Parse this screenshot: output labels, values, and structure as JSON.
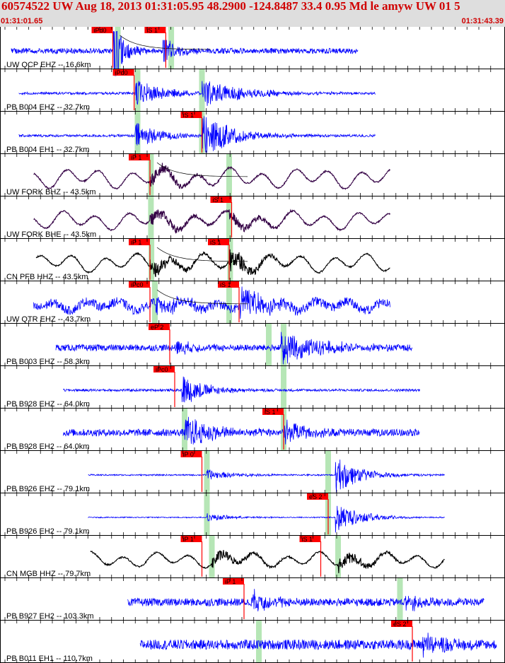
{
  "header": {
    "title": "60574522 UW Aug 18, 2013 01:31:05.95   48.2900 -124.8487 33.4 0.95 Md le amyw UW 01   5",
    "start_time": "01:31:01.65",
    "end_time": "01:31:43.39"
  },
  "colors": {
    "header_bg": "#dedede",
    "title": "#d00000",
    "pick_label_bg": "#ff0000",
    "pick_window": "#b6e6b6",
    "trace_blue": "#0000ff",
    "trace_black": "#000000",
    "trace_purple": "#330044"
  },
  "traces": [
    {
      "label": "UW QCP EHZ -- 16.6km",
      "color": "#0000ff",
      "kind": "spike",
      "t0": 0.02,
      "t1": 0.72,
      "ampl": 0.15,
      "events": [
        {
          "t": 0.23,
          "a": 1.6,
          "d": 0.02
        },
        {
          "t": 0.33,
          "a": 0.6,
          "d": 0.03
        }
      ],
      "windows": [
        0.235,
        0.343
      ],
      "picks": [
        {
          "t": 0.225,
          "label": "iPd0"
        },
        {
          "t": 0.332,
          "label": "iS 1"
        }
      ],
      "fit_curve": true
    },
    {
      "label": "PB B004 EHZ -- 32.7km",
      "color": "#0000ff",
      "kind": "noise",
      "t0": 0.035,
      "t1": 0.755,
      "ampl": 0.07,
      "events": [
        {
          "t": 0.27,
          "a": 0.8,
          "d": 0.05
        },
        {
          "t": 0.405,
          "a": 0.65,
          "d": 0.09
        }
      ],
      "windows": [
        0.275,
        0.405
      ],
      "picks": [
        {
          "t": 0.268,
          "label": "iPd0"
        }
      ]
    },
    {
      "label": "PB B004 EH1 -- 32.7km",
      "color": "#0000ff",
      "kind": "noise",
      "t0": 0.035,
      "t1": 0.755,
      "ampl": 0.07,
      "events": [
        {
          "t": 0.27,
          "a": 0.7,
          "d": 0.05
        },
        {
          "t": 0.405,
          "a": 1.2,
          "d": 0.06
        }
      ],
      "windows": [
        0.275,
        0.405
      ],
      "picks": [
        {
          "t": 0.405,
          "label": "iS 1"
        }
      ]
    },
    {
      "label": "UW FORK BHZ -- 43.5km",
      "color": "#330044",
      "kind": "wave",
      "t0": 0.065,
      "t1": 0.785,
      "ampl": 0.6,
      "events": [
        {
          "t": 0.3,
          "a": 0.4,
          "d": 0.06
        }
      ],
      "windows": [
        0.302,
        0.46
      ],
      "picks": [
        {
          "t": 0.3,
          "label": "iP 1"
        }
      ],
      "fit_curve": true
    },
    {
      "label": "UW FORK BHE -- 43.5km",
      "color": "#330044",
      "kind": "wave",
      "t0": 0.065,
      "t1": 0.785,
      "ampl": 0.55,
      "events": [
        {
          "t": 0.3,
          "a": 0.4,
          "d": 0.06
        },
        {
          "t": 0.46,
          "a": 0.35,
          "d": 0.06
        }
      ],
      "windows": [
        0.302,
        0.46
      ],
      "picks": [
        {
          "t": 0.465,
          "label": "iS 1"
        }
      ]
    },
    {
      "label": "CN PFB HHZ -- 43.5km",
      "color": "#000000",
      "kind": "wave",
      "t0": 0.07,
      "t1": 0.785,
      "ampl": 0.55,
      "events": [
        {
          "t": 0.3,
          "a": 0.45,
          "d": 0.06
        },
        {
          "t": 0.46,
          "a": 0.6,
          "d": 0.05
        }
      ],
      "windows": [
        0.303,
        0.462
      ],
      "picks": [
        {
          "t": 0.3,
          "label": "iP 1"
        },
        {
          "t": 0.46,
          "label": "iS 1"
        }
      ],
      "fit_curve": true
    },
    {
      "label": "UW QTR EHZ -- 43.7km",
      "color": "#0000ff",
      "kind": "noisewave",
      "t0": 0.065,
      "t1": 0.785,
      "ampl": 0.3,
      "events": [
        {
          "t": 0.31,
          "a": 0.5,
          "d": 0.05
        },
        {
          "t": 0.48,
          "a": 0.9,
          "d": 0.05
        }
      ],
      "windows": [
        0.31,
        0.46
      ],
      "picks": [
        {
          "t": 0.3,
          "label": "iPc0"
        },
        {
          "t": 0.48,
          "label": "iS 1"
        }
      ],
      "fit_curve": true
    },
    {
      "label": "PB B003 EHZ -- 58.3km",
      "color": "#0000ff",
      "kind": "noise",
      "t0": 0.11,
      "t1": 0.83,
      "ampl": 0.18,
      "events": [
        {
          "t": 0.35,
          "a": 0.35,
          "d": 0.04
        },
        {
          "t": 0.565,
          "a": 0.85,
          "d": 0.08
        }
      ],
      "windows": [
        0.54,
        0.57
      ],
      "picks": [
        {
          "t": 0.34,
          "label": "eP 2"
        }
      ]
    },
    {
      "label": "PB B928 EHZ -- 64.0km",
      "color": "#0000ff",
      "kind": "noise",
      "t0": 0.125,
      "t1": 0.845,
      "ampl": 0.07,
      "events": [
        {
          "t": 0.365,
          "a": 0.8,
          "d": 0.05
        }
      ],
      "windows": [
        0.57
      ],
      "picks": [
        {
          "t": 0.35,
          "label": "iPc0"
        }
      ]
    },
    {
      "label": "PB B928 EH2 -- 64.0km",
      "color": "#0000ff",
      "kind": "noise",
      "t0": 0.125,
      "t1": 0.845,
      "ampl": 0.2,
      "events": [
        {
          "t": 0.37,
          "a": 0.9,
          "d": 0.05
        },
        {
          "t": 0.57,
          "a": 0.6,
          "d": 0.05
        }
      ],
      "windows": [
        0.37,
        0.57
      ],
      "picks": [
        {
          "t": 0.57,
          "label": "iS 1"
        }
      ]
    },
    {
      "label": "PB B926 EHZ -- 79.1km",
      "color": "#0000ff",
      "kind": "noise",
      "t0": 0.175,
      "t1": 0.895,
      "ampl": 0.04,
      "events": [
        {
          "t": 0.415,
          "a": 0.3,
          "d": 0.05
        },
        {
          "t": 0.675,
          "a": 0.95,
          "d": 0.05
        }
      ],
      "windows": [
        0.415,
        0.66
      ],
      "picks": [
        {
          "t": 0.405,
          "label": "iP 0"
        }
      ]
    },
    {
      "label": "PB B926 EH2 -- 79.1km",
      "color": "#0000ff",
      "kind": "noise",
      "t0": 0.175,
      "t1": 0.895,
      "ampl": 0.03,
      "events": [
        {
          "t": 0.415,
          "a": 0.2,
          "d": 0.05
        },
        {
          "t": 0.675,
          "a": 0.8,
          "d": 0.05
        }
      ],
      "windows": [
        0.415,
        0.66
      ],
      "picks": [
        {
          "t": 0.66,
          "label": "eS 2"
        }
      ]
    },
    {
      "label": "CN MGB HHZ -- 79.7km",
      "color": "#000000",
      "kind": "wave",
      "t0": 0.18,
      "t1": 0.895,
      "ampl": 0.45,
      "events": [
        {
          "t": 0.425,
          "a": 0.35,
          "d": 0.06
        },
        {
          "t": 0.68,
          "a": 0.4,
          "d": 0.06
        }
      ],
      "windows": [
        0.425,
        0.68
      ],
      "picks": [
        {
          "t": 0.405,
          "label": "iP 1"
        },
        {
          "t": 0.645,
          "label": "iS 1"
        }
      ]
    },
    {
      "label": "PB B927 EH2 -- 103.3km",
      "color": "#0000ff",
      "kind": "noise",
      "t0": 0.255,
      "t1": 0.975,
      "ampl": 0.22,
      "events": [
        {
          "t": 0.505,
          "a": 0.6,
          "d": 0.04
        },
        {
          "t": 0.815,
          "a": 0.4,
          "d": 0.05
        }
      ],
      "windows": [
        0.805
      ],
      "picks": [
        {
          "t": 0.49,
          "label": "iP 1"
        }
      ]
    },
    {
      "label": "PB B011 EH1 -- 110.7km",
      "color": "#0000ff",
      "kind": "noise",
      "t0": 0.28,
      "t1": 1.0,
      "ampl": 0.28,
      "events": [
        {
          "t": 0.85,
          "a": 0.55,
          "d": 0.05
        }
      ],
      "windows": [
        0.52
      ],
      "picks": [
        {
          "t": 0.83,
          "label": "eS 2"
        }
      ]
    }
  ]
}
